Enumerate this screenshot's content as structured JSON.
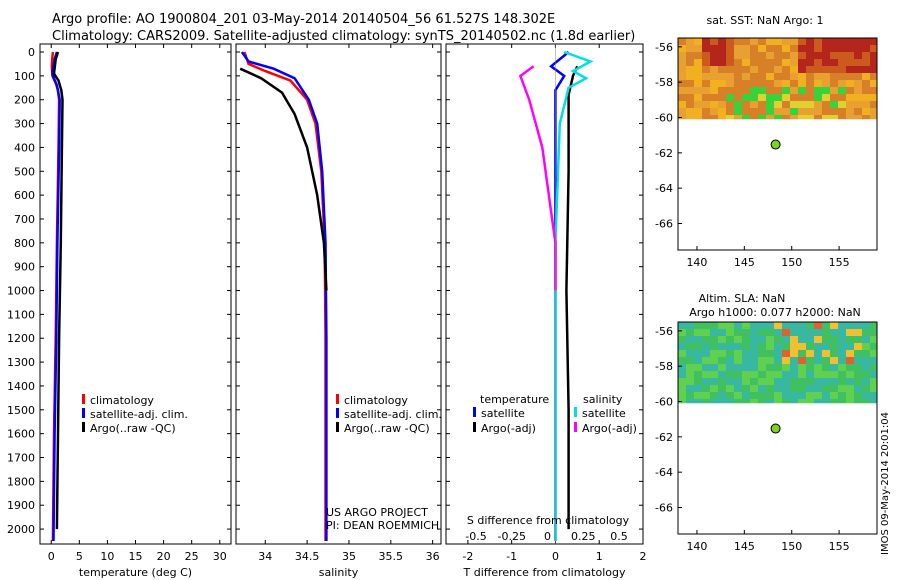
{
  "header": {
    "line1": "Argo profile: AO 1900804_201 03-May-2014 20140504_56 61.527S 148.302E",
    "line2": "Climatology: CARS2009. Satellite-adjusted climatology: synTS_20140502.nc (1.8d earlier)"
  },
  "credit": {
    "line1": "US ARGO PROJECT",
    "line2": "PI: DEAN ROEMMICH"
  },
  "side_stamp": "IMOS 09-May-2014 20:01:04",
  "colors": {
    "climatology": "#ff0000",
    "satellite": "#0000ff",
    "argo": "#000000",
    "sat_sal": "#00e0e0",
    "argo_sal": "#ff00ff"
  },
  "depth_ticks": [
    0,
    100,
    200,
    300,
    400,
    500,
    600,
    700,
    800,
    900,
    1000,
    1100,
    1200,
    1300,
    1400,
    1500,
    1600,
    1700,
    1800,
    1900,
    2000
  ],
  "legends": {
    "temp": [
      "climatology",
      "satellite-adj. clim.",
      "Argo(..raw -QC)"
    ],
    "sal": [
      "climatology",
      "satellite-adj. clim.",
      "Argo(..raw -QC)"
    ],
    "diff": {
      "temp_header": "temperature",
      "sal_header": "salinity",
      "temp_items": [
        "satellite",
        "Argo(-adj)"
      ],
      "sal_items": [
        "satellite",
        "Argo(-adj)"
      ]
    }
  },
  "chart_data": [
    {
      "type": "line",
      "xlabel": "temperature (deg C)",
      "xlim": [
        -2,
        32
      ],
      "ylim": [
        0,
        2050
      ],
      "y_inverted": true,
      "xticks": [
        0,
        5,
        10,
        15,
        20,
        25,
        30
      ],
      "series": [
        {
          "name": "climatology",
          "color": "#ff0000",
          "points": [
            [
              0.3,
              0
            ],
            [
              0.2,
              20
            ],
            [
              0.1,
              60
            ],
            [
              0.2,
              100
            ],
            [
              0.8,
              130
            ],
            [
              1.2,
              160
            ],
            [
              1.4,
              200
            ],
            [
              1.3,
              400
            ],
            [
              1.0,
              800
            ],
            [
              0.8,
              1200
            ],
            [
              0.5,
              1600
            ],
            [
              0.3,
              2050
            ]
          ]
        },
        {
          "name": "satellite-adj. clim.",
          "color": "#0000ff",
          "points": [
            [
              1.0,
              0
            ],
            [
              0.6,
              30
            ],
            [
              0.2,
              80
            ],
            [
              0.3,
              100
            ],
            [
              1.0,
              140
            ],
            [
              1.5,
              200
            ],
            [
              1.4,
              400
            ],
            [
              1.1,
              800
            ],
            [
              0.9,
              1200
            ],
            [
              0.6,
              1600
            ],
            [
              0.4,
              2050
            ]
          ]
        },
        {
          "name": "Argo(..raw -QC)",
          "color": "#000000",
          "points": [
            [
              1.2,
              0
            ],
            [
              0.8,
              30
            ],
            [
              0.5,
              90
            ],
            [
              1.3,
              120
            ],
            [
              1.8,
              160
            ],
            [
              2.0,
              200
            ],
            [
              1.9,
              400
            ],
            [
              1.7,
              800
            ],
            [
              1.4,
              1200
            ],
            [
              1.2,
              1600
            ],
            [
              1.0,
              2000
            ]
          ]
        }
      ]
    },
    {
      "type": "line",
      "xlabel": "salinity",
      "xlim": [
        33.65,
        36.1
      ],
      "ylim": [
        0,
        2050
      ],
      "y_inverted": true,
      "xticks": [
        34,
        34.5,
        35,
        35.5,
        36
      ],
      "series": [
        {
          "name": "climatology",
          "color": "#ff0000",
          "points": [
            [
              33.75,
              0
            ],
            [
              33.8,
              50
            ],
            [
              34.0,
              80
            ],
            [
              34.3,
              120
            ],
            [
              34.5,
              200
            ],
            [
              34.6,
              300
            ],
            [
              34.67,
              500
            ],
            [
              34.71,
              800
            ],
            [
              34.72,
              1200
            ],
            [
              34.72,
              2050
            ]
          ]
        },
        {
          "name": "satellite-adj. clim.",
          "color": "#0000ff",
          "points": [
            [
              33.72,
              0
            ],
            [
              33.8,
              40
            ],
            [
              34.1,
              70
            ],
            [
              34.35,
              110
            ],
            [
              34.52,
              200
            ],
            [
              34.62,
              300
            ],
            [
              34.68,
              500
            ],
            [
              34.72,
              800
            ],
            [
              34.73,
              1200
            ],
            [
              34.73,
              2050
            ]
          ]
        },
        {
          "name": "Argo(..raw -QC)",
          "color": "#000000",
          "points": [
            [
              33.7,
              70
            ],
            [
              33.95,
              110
            ],
            [
              34.2,
              170
            ],
            [
              34.35,
              260
            ],
            [
              34.5,
              400
            ],
            [
              34.62,
              600
            ],
            [
              34.7,
              800
            ],
            [
              34.73,
              1000
            ]
          ]
        }
      ]
    },
    {
      "type": "line",
      "xlabel": "T difference from climatology",
      "title": "S difference from climatology",
      "xlim": [
        -2.5,
        2
      ],
      "ylim": [
        0,
        2050
      ],
      "y_inverted": true,
      "xticks": [
        -2,
        -1,
        0,
        1,
        2
      ],
      "top_xticks": [
        "-0.5",
        "-0.25",
        "0",
        "0.25",
        "0.5"
      ],
      "series": [
        {
          "name": "temperature satellite",
          "color": "#0000ff",
          "points": [
            [
              0.3,
              0
            ],
            [
              -0.1,
              60
            ],
            [
              0.2,
              100
            ],
            [
              0,
              160
            ],
            [
              0,
              400
            ],
            [
              0,
              1000
            ],
            [
              0,
              2050
            ]
          ]
        },
        {
          "name": "temperature Argo(-adj)",
          "color": "#000000",
          "points": [
            [
              0.5,
              60
            ],
            [
              0.4,
              100
            ],
            [
              0.3,
              180
            ],
            [
              0.3,
              500
            ],
            [
              0.25,
              1000
            ],
            [
              0.3,
              1500
            ],
            [
              0.3,
              2000
            ]
          ]
        },
        {
          "name": "salinity satellite",
          "color": "#00e0e0",
          "points": [
            [
              0.2,
              0
            ],
            [
              0.8,
              40
            ],
            [
              0.4,
              80
            ],
            [
              0.7,
              110
            ],
            [
              0.3,
              150
            ],
            [
              0.1,
              300
            ],
            [
              0,
              800
            ],
            [
              0,
              1500
            ],
            [
              0,
              2050
            ]
          ]
        },
        {
          "name": "salinity Argo(-adj)",
          "color": "#ff00ff",
          "points": [
            [
              -0.5,
              60
            ],
            [
              -0.8,
              100
            ],
            [
              -0.6,
              200
            ],
            [
              -0.3,
              400
            ],
            [
              0,
              800
            ],
            [
              0,
              1000
            ]
          ]
        }
      ]
    },
    {
      "type": "heatmap",
      "title": "sat. SST: NaN Argo: 1",
      "xlim": [
        138,
        159
      ],
      "ylim": [
        -67.5,
        -55.5
      ],
      "xticks": [
        140,
        145,
        150,
        155
      ],
      "yticks": [
        -56,
        -58,
        -60,
        -62,
        -64,
        -66
      ],
      "argo_point": [
        148.3,
        -61.53
      ]
    },
    {
      "type": "heatmap",
      "title": "Altim. SLA: NaN",
      "subtitle": "Argo h1000: 0.077 h2000: NaN",
      "xlim": [
        138,
        159
      ],
      "ylim": [
        -67.5,
        -55.5
      ],
      "xticks": [
        140,
        145,
        150,
        155
      ],
      "yticks": [
        -56,
        -58,
        -60,
        -62,
        -64,
        -66
      ],
      "argo_point": [
        148.3,
        -61.53
      ]
    }
  ]
}
